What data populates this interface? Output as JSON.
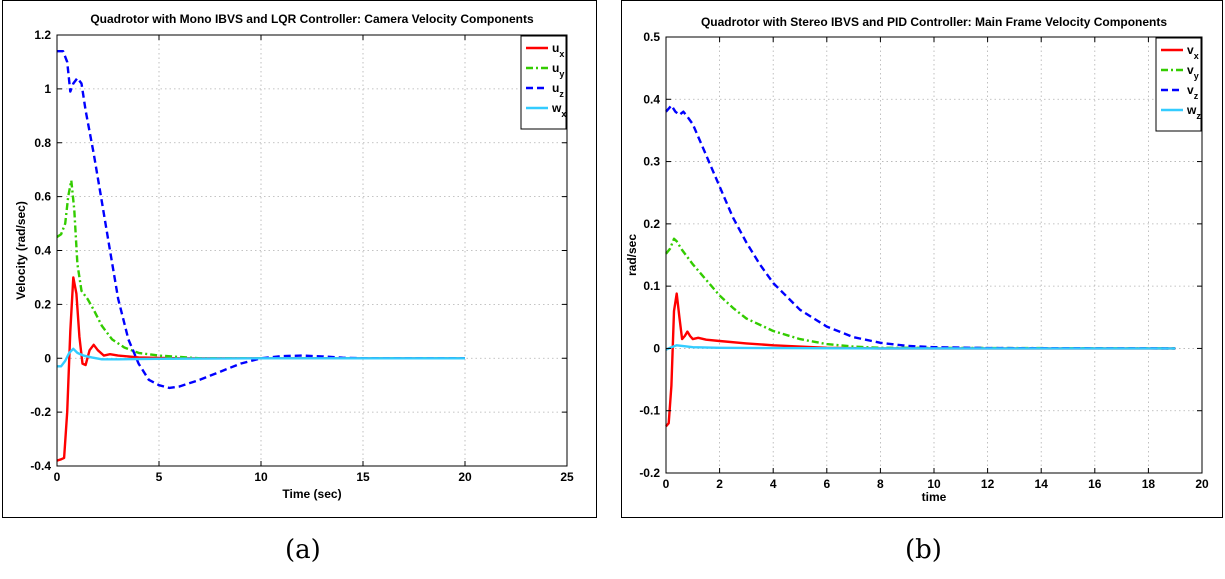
{
  "captions": [
    "(a)",
    "(b)"
  ],
  "chart_data": [
    {
      "type": "line",
      "title": "Quadrotor with Mono IBVS and LQR Controller: Camera Velocity Components",
      "xlabel": "Time (sec)",
      "ylabel": "Velocity (rad/sec)",
      "xlim": [
        0,
        25
      ],
      "ylim": [
        -0.4,
        1.2
      ],
      "xticks": [
        0,
        5,
        10,
        15,
        20,
        25
      ],
      "yticks": [
        -0.4,
        -0.2,
        0,
        0.2,
        0.4,
        0.6,
        0.8,
        1,
        1.2
      ],
      "grid": true,
      "legend_position": "top-right",
      "series": [
        {
          "name": "u",
          "sub": "x",
          "color": "#ff0000",
          "dash": "solid",
          "x": [
            0,
            0.2,
            0.35,
            0.5,
            0.65,
            0.8,
            0.95,
            1.1,
            1.25,
            1.4,
            1.6,
            1.8,
            2.0,
            2.3,
            2.6,
            3.0,
            4,
            6,
            10,
            20
          ],
          "y": [
            -0.38,
            -0.375,
            -0.37,
            -0.2,
            0.1,
            0.3,
            0.24,
            0.08,
            -0.02,
            -0.025,
            0.03,
            0.05,
            0.03,
            0.01,
            0.015,
            0.01,
            0.003,
            0,
            0,
            0
          ]
        },
        {
          "name": "u",
          "sub": "y",
          "color": "#33cc00",
          "dash": "dashdot",
          "x": [
            0,
            0.2,
            0.4,
            0.55,
            0.7,
            0.85,
            1.0,
            1.2,
            1.5,
            1.8,
            2.2,
            2.7,
            3.3,
            4,
            5,
            7,
            10,
            20
          ],
          "y": [
            0.45,
            0.46,
            0.5,
            0.6,
            0.66,
            0.55,
            0.35,
            0.25,
            0.22,
            0.18,
            0.12,
            0.07,
            0.04,
            0.02,
            0.01,
            0,
            0,
            0
          ]
        },
        {
          "name": "u",
          "sub": "z",
          "color": "#0000ff",
          "dash": "dashed",
          "x": [
            0,
            0.3,
            0.5,
            0.65,
            0.8,
            1.0,
            1.2,
            1.4,
            1.8,
            2.2,
            2.6,
            3.0,
            3.5,
            4.0,
            4.5,
            5.0,
            5.5,
            6.0,
            7.0,
            8.0,
            9.0,
            10.0,
            11.0,
            12.0,
            13.0,
            14.0,
            15.0,
            17.0,
            20.0
          ],
          "y": [
            1.14,
            1.14,
            1.1,
            0.99,
            1.02,
            1.04,
            1.02,
            0.92,
            0.76,
            0.58,
            0.4,
            0.22,
            0.07,
            -0.02,
            -0.08,
            -0.1,
            -0.11,
            -0.105,
            -0.08,
            -0.05,
            -0.02,
            0.0,
            0.008,
            0.01,
            0.007,
            0.002,
            0,
            0,
            0
          ]
        },
        {
          "name": "w",
          "sub": "x",
          "color": "#33ccff",
          "dash": "solid",
          "x": [
            0,
            0.2,
            0.4,
            0.6,
            0.8,
            1.0,
            1.3,
            1.7,
            2.2,
            3,
            5,
            10,
            20
          ],
          "y": [
            -0.03,
            -0.03,
            -0.01,
            0.02,
            0.035,
            0.02,
            0.01,
            0.003,
            -0.004,
            -0.004,
            -0.002,
            0,
            0
          ]
        }
      ]
    },
    {
      "type": "line",
      "title": "Quadrotor with Stereo IBVS and PID Controller: Main Frame Velocity Components",
      "xlabel": "time",
      "ylabel": "rad/sec",
      "xlim": [
        0,
        20
      ],
      "ylim": [
        -0.2,
        0.5
      ],
      "xticks": [
        0,
        2,
        4,
        6,
        8,
        10,
        12,
        14,
        16,
        18,
        20
      ],
      "yticks": [
        -0.2,
        -0.1,
        0,
        0.1,
        0.2,
        0.3,
        0.4,
        0.5
      ],
      "grid": true,
      "legend_position": "top-right",
      "series": [
        {
          "name": "v",
          "sub": "x",
          "color": "#ff0000",
          "dash": "solid",
          "x": [
            0,
            0.1,
            0.2,
            0.3,
            0.4,
            0.5,
            0.6,
            0.7,
            0.8,
            0.9,
            1.0,
            1.2,
            1.5,
            2,
            3,
            4,
            5,
            6,
            8,
            19
          ],
          "y": [
            -0.125,
            -0.12,
            -0.06,
            0.06,
            0.088,
            0.05,
            0.015,
            0.02,
            0.027,
            0.02,
            0.015,
            0.017,
            0.014,
            0.012,
            0.008,
            0.005,
            0.003,
            0.001,
            0,
            0
          ]
        },
        {
          "name": "v",
          "sub": "y",
          "color": "#33cc00",
          "dash": "dashdot",
          "x": [
            0,
            0.15,
            0.3,
            0.4,
            0.6,
            1,
            1.5,
            2,
            2.5,
            3,
            4,
            5,
            6,
            7,
            8,
            19
          ],
          "y": [
            0.152,
            0.16,
            0.176,
            0.172,
            0.158,
            0.135,
            0.11,
            0.085,
            0.065,
            0.048,
            0.028,
            0.015,
            0.007,
            0.003,
            0.001,
            0
          ]
        },
        {
          "name": "v",
          "sub": "z",
          "color": "#0000ff",
          "dash": "dashed",
          "x": [
            0,
            0.2,
            0.35,
            0.5,
            0.65,
            0.8,
            1,
            1.5,
            2,
            2.5,
            3,
            3.5,
            4,
            5,
            6,
            7,
            8,
            9,
            10,
            12,
            19
          ],
          "y": [
            0.38,
            0.39,
            0.38,
            0.375,
            0.38,
            0.372,
            0.36,
            0.31,
            0.26,
            0.21,
            0.17,
            0.135,
            0.105,
            0.062,
            0.035,
            0.018,
            0.009,
            0.004,
            0.002,
            0.0005,
            0
          ]
        },
        {
          "name": "w",
          "sub": "z",
          "color": "#33ccff",
          "dash": "solid",
          "x": [
            0,
            0.2,
            0.4,
            0.6,
            1,
            2,
            4,
            8,
            19
          ],
          "y": [
            -0.002,
            0.002,
            0.005,
            0.004,
            0.002,
            0.001,
            0.0005,
            0,
            0
          ]
        }
      ]
    }
  ]
}
